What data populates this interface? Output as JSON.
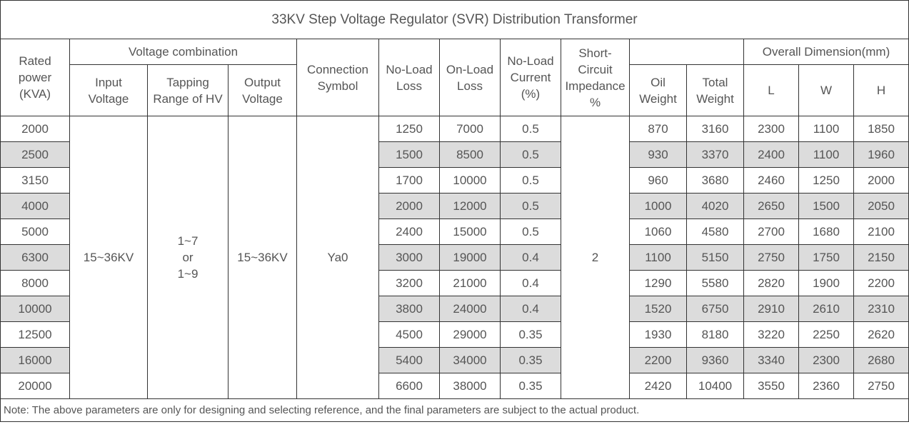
{
  "title": "33KV Step Voltage Regulator (SVR) Distribution Transformer",
  "headers": {
    "rated_power": "Rated\npower\n(KVA)",
    "voltage_combination": "Voltage combination",
    "input_voltage": "Input\nVoltage",
    "tapping_range": "Tapping\nRange of HV",
    "output_voltage": "Output\nVoltage",
    "connection_symbol": "Connection\nSymbol",
    "no_load_loss": "No-Load\nLoss",
    "on_load_loss": "On-Load\nLoss",
    "no_load_current": "No-Load\nCurrent\n(%)",
    "impedance": "Short-\nCircuit\nImpedance\n%",
    "weight_group": "",
    "oil_weight": "Oil\nWeight",
    "total_weight": "Total\nWeight",
    "overall_dimension": "Overall Dimension(mm)",
    "dim_l": "L",
    "dim_w": "W",
    "dim_h": "H"
  },
  "merged": {
    "input_voltage": "15~36KV",
    "tapping_range": "1~7\nor\n1~9",
    "output_voltage": "15~36KV",
    "connection_symbol": "Ya0",
    "impedance": "2"
  },
  "rows": [
    {
      "power": "2000",
      "no_load_loss": "1250",
      "on_load_loss": "7000",
      "current": "0.5",
      "oil": "870",
      "total": "3160",
      "l": "2300",
      "w": "1100",
      "h": "1850"
    },
    {
      "power": "2500",
      "no_load_loss": "1500",
      "on_load_loss": "8500",
      "current": "0.5",
      "oil": "930",
      "total": "3370",
      "l": "2400",
      "w": "1100",
      "h": "1960"
    },
    {
      "power": "3150",
      "no_load_loss": "1700",
      "on_load_loss": "10000",
      "current": "0.5",
      "oil": "960",
      "total": "3680",
      "l": "2460",
      "w": "1250",
      "h": "2000"
    },
    {
      "power": "4000",
      "no_load_loss": "2000",
      "on_load_loss": "12000",
      "current": "0.5",
      "oil": "1000",
      "total": "4020",
      "l": "2650",
      "w": "1500",
      "h": "2050"
    },
    {
      "power": "5000",
      "no_load_loss": "2400",
      "on_load_loss": "15000",
      "current": "0.5",
      "oil": "1060",
      "total": "4580",
      "l": "2700",
      "w": "1680",
      "h": "2100"
    },
    {
      "power": "6300",
      "no_load_loss": "3000",
      "on_load_loss": "19000",
      "current": "0.4",
      "oil": "1100",
      "total": "5150",
      "l": "2750",
      "w": "1750",
      "h": "2150"
    },
    {
      "power": "8000",
      "no_load_loss": "3200",
      "on_load_loss": "21000",
      "current": "0.4",
      "oil": "1290",
      "total": "5580",
      "l": "2820",
      "w": "1900",
      "h": "2200"
    },
    {
      "power": "10000",
      "no_load_loss": "3800",
      "on_load_loss": "24000",
      "current": "0.4",
      "oil": "1520",
      "total": "6750",
      "l": "2910",
      "w": "2610",
      "h": "2310"
    },
    {
      "power": "12500",
      "no_load_loss": "4500",
      "on_load_loss": "29000",
      "current": "0.35",
      "oil": "1930",
      "total": "8180",
      "l": "3220",
      "w": "2250",
      "h": "2620"
    },
    {
      "power": "16000",
      "no_load_loss": "5400",
      "on_load_loss": "34000",
      "current": "0.35",
      "oil": "2200",
      "total": "9360",
      "l": "3340",
      "w": "2300",
      "h": "2680"
    },
    {
      "power": "20000",
      "no_load_loss": "6600",
      "on_load_loss": "38000",
      "current": "0.35",
      "oil": "2420",
      "total": "10400",
      "l": "3550",
      "w": "2360",
      "h": "2750"
    }
  ],
  "note": "Note: The above parameters are only for designing and selecting  reference, and the final parameters are subject to the actual product.",
  "colors": {
    "shade": "#dcdcdc",
    "border": "#333333",
    "text": "#555555"
  }
}
